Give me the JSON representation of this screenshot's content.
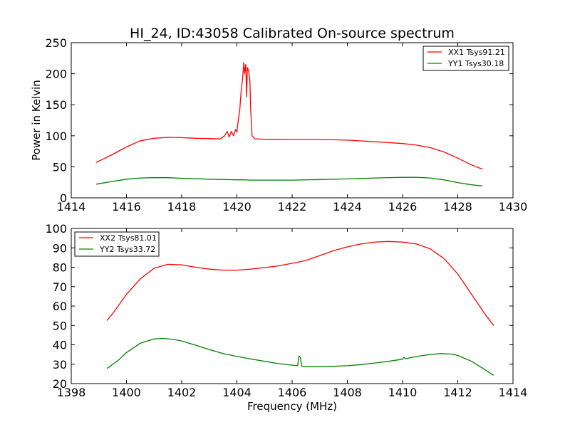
{
  "chart_data": [
    {
      "type": "line",
      "title": "HI_24, ID:43058 Calibrated On-source spectrum",
      "xlabel": "",
      "ylabel": "Power in Kelvin",
      "xlim": [
        1414,
        1430
      ],
      "ylim": [
        0,
        250
      ],
      "xticks": [
        "1414",
        "1416",
        "1418",
        "1420",
        "1422",
        "1424",
        "1426",
        "1428",
        "1430"
      ],
      "yticks": [
        "0",
        "50",
        "100",
        "150",
        "200",
        "250"
      ],
      "legend_position": "top-right",
      "grid": false,
      "series": [
        {
          "name": "XX1 Tsys91.21",
          "color": "#ff0000",
          "points": [
            [
              1414.9,
              57
            ],
            [
              1415.5,
              70
            ],
            [
              1416.0,
              82
            ],
            [
              1416.5,
              92
            ],
            [
              1417.0,
              96
            ],
            [
              1417.5,
              97.5
            ],
            [
              1418.0,
              97
            ],
            [
              1418.5,
              96
            ],
            [
              1419.0,
              95.5
            ],
            [
              1419.4,
              95
            ],
            [
              1419.55,
              100
            ],
            [
              1419.65,
              107
            ],
            [
              1419.72,
              98
            ],
            [
              1419.8,
              107
            ],
            [
              1419.88,
              100
            ],
            [
              1419.95,
              110
            ],
            [
              1420.0,
              106
            ],
            [
              1420.05,
              125
            ],
            [
              1420.1,
              140
            ],
            [
              1420.15,
              170
            ],
            [
              1420.2,
              190
            ],
            [
              1420.25,
              218
            ],
            [
              1420.28,
              200
            ],
            [
              1420.32,
              215
            ],
            [
              1420.35,
              163
            ],
            [
              1420.38,
              210
            ],
            [
              1420.42,
              205
            ],
            [
              1420.47,
              190
            ],
            [
              1420.5,
              140
            ],
            [
              1420.55,
              100
            ],
            [
              1420.65,
              95
            ],
            [
              1421.0,
              94.5
            ],
            [
              1422.0,
              94
            ],
            [
              1423.0,
              94
            ],
            [
              1424.0,
              93
            ],
            [
              1425.0,
              90.5
            ],
            [
              1426.0,
              87.5
            ],
            [
              1426.5,
              85
            ],
            [
              1427.0,
              81
            ],
            [
              1427.5,
              74
            ],
            [
              1428.0,
              64
            ],
            [
              1428.5,
              53
            ],
            [
              1428.9,
              46
            ]
          ]
        },
        {
          "name": "YY1 Tsys30.18",
          "color": "#008000",
          "points": [
            [
              1414.9,
              22
            ],
            [
              1415.5,
              26.5
            ],
            [
              1416.0,
              30
            ],
            [
              1416.5,
              32
            ],
            [
              1417.0,
              32.5
            ],
            [
              1417.5,
              32.5
            ],
            [
              1418.0,
              31.5
            ],
            [
              1419.0,
              30
            ],
            [
              1420.0,
              29
            ],
            [
              1420.3,
              29
            ],
            [
              1420.5,
              28.5
            ],
            [
              1421.0,
              28.5
            ],
            [
              1422.0,
              28.5
            ],
            [
              1423.0,
              29.5
            ],
            [
              1424.0,
              30.5
            ],
            [
              1425.0,
              32
            ],
            [
              1426.0,
              33
            ],
            [
              1426.5,
              33
            ],
            [
              1427.0,
              32
            ],
            [
              1427.5,
              29
            ],
            [
              1428.0,
              24.5
            ],
            [
              1428.5,
              21
            ],
            [
              1428.9,
              19
            ]
          ]
        }
      ]
    },
    {
      "type": "line",
      "title": "",
      "xlabel": "Frequency (MHz)",
      "ylabel": "",
      "xlim": [
        1398,
        1414
      ],
      "ylim": [
        20,
        100
      ],
      "xticks": [
        "1398",
        "1400",
        "1402",
        "1404",
        "1406",
        "1408",
        "1410",
        "1412",
        "1414"
      ],
      "yticks": [
        "20",
        "30",
        "40",
        "50",
        "60",
        "70",
        "80",
        "90",
        "100"
      ],
      "legend_position": "top-left",
      "grid": false,
      "series": [
        {
          "name": "XX2 Tsys81.01",
          "color": "#ff0000",
          "points": [
            [
              1399.3,
              52.5
            ],
            [
              1399.6,
              58
            ],
            [
              1400.0,
              66
            ],
            [
              1400.5,
              74
            ],
            [
              1401.0,
              79.5
            ],
            [
              1401.5,
              81.5
            ],
            [
              1402.0,
              81.2
            ],
            [
              1402.5,
              80
            ],
            [
              1403.0,
              79
            ],
            [
              1403.5,
              78.5
            ],
            [
              1404.0,
              78.5
            ],
            [
              1404.5,
              79
            ],
            [
              1405.0,
              79.8
            ],
            [
              1405.5,
              80.7
            ],
            [
              1406.0,
              82
            ],
            [
              1406.5,
              83.5
            ],
            [
              1407.0,
              86
            ],
            [
              1407.5,
              88.5
            ],
            [
              1408.0,
              90.5
            ],
            [
              1408.5,
              92
            ],
            [
              1409.0,
              93
            ],
            [
              1409.5,
              93.3
            ],
            [
              1410.0,
              93
            ],
            [
              1410.5,
              92
            ],
            [
              1411.0,
              89.5
            ],
            [
              1411.5,
              84.5
            ],
            [
              1412.0,
              76.5
            ],
            [
              1412.5,
              66
            ],
            [
              1413.0,
              55.5
            ],
            [
              1413.3,
              50
            ]
          ]
        },
        {
          "name": "YY2 Tsys33.72",
          "color": "#008000",
          "points": [
            [
              1399.3,
              27.8
            ],
            [
              1399.7,
              32
            ],
            [
              1400.0,
              36
            ],
            [
              1400.5,
              40.8
            ],
            [
              1401.0,
              43
            ],
            [
              1401.3,
              43.3
            ],
            [
              1401.7,
              42.8
            ],
            [
              1402.0,
              42
            ],
            [
              1402.5,
              39.8
            ],
            [
              1403.0,
              37.5
            ],
            [
              1403.5,
              35.5
            ],
            [
              1404.0,
              34
            ],
            [
              1404.5,
              32.7
            ],
            [
              1405.0,
              31.5
            ],
            [
              1405.5,
              30.3
            ],
            [
              1406.0,
              29.5
            ],
            [
              1406.2,
              29.2
            ],
            [
              1406.25,
              34.2
            ],
            [
              1406.3,
              33.5
            ],
            [
              1406.35,
              29
            ],
            [
              1406.5,
              28.7
            ],
            [
              1407.0,
              28.7
            ],
            [
              1407.5,
              28.9
            ],
            [
              1408.0,
              29.2
            ],
            [
              1408.5,
              29.8
            ],
            [
              1409.0,
              30.6
            ],
            [
              1409.5,
              31.5
            ],
            [
              1410.0,
              32.6
            ],
            [
              1410.05,
              33.6
            ],
            [
              1410.1,
              32.8
            ],
            [
              1410.5,
              34
            ],
            [
              1411.0,
              35
            ],
            [
              1411.4,
              35.5
            ],
            [
              1411.8,
              35.2
            ],
            [
              1412.0,
              34.5
            ],
            [
              1412.5,
              31.5
            ],
            [
              1413.0,
              27
            ],
            [
              1413.3,
              24.3
            ]
          ]
        }
      ]
    }
  ]
}
